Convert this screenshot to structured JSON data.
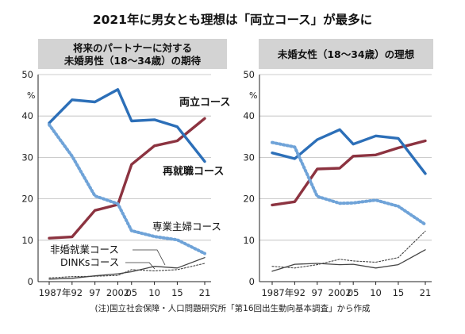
{
  "title": "2021年に男女とも理想は「両立コース」が最多に",
  "note": "(注)国立社会保障・人口問題研究所「第16回出生動向基本調査」から作成",
  "colors": {
    "両立コース": "#8c3340",
    "再就職コース": "#2c6fb8",
    "専業主婦コース": "#6fa3d8",
    "非婚就業コース": "#444444",
    "DINKsコース": "#444444"
  },
  "chart_data": [
    {
      "type": "line",
      "panel_title": [
        "将来のパートナーに対する",
        "未婚男性（18～34歳）の期待"
      ],
      "x": [
        "1987年",
        "92",
        "97",
        "2002",
        "05",
        "10",
        "15",
        "21"
      ],
      "ylim": [
        0,
        50
      ],
      "yticks": [
        "0",
        "10",
        "20",
        "30",
        "40",
        "50"
      ],
      "unit": "%",
      "series": [
        {
          "name": "両立コース",
          "values": [
            10.5,
            10.8,
            17.2,
            18.6,
            28.3,
            32.8,
            34.0,
            39.4
          ],
          "style": "solid-bold"
        },
        {
          "name": "再就職コース",
          "values": [
            38.3,
            43.9,
            43.4,
            46.4,
            38.8,
            39.1,
            37.4,
            29.0
          ],
          "style": "solid-bold"
        },
        {
          "name": "専業主婦コース",
          "values": [
            37.9,
            30.3,
            20.7,
            18.8,
            12.3,
            10.9,
            10.1,
            6.8
          ],
          "style": "dotted-bold"
        },
        {
          "name": "非婚就業コース",
          "values": [
            0.6,
            0.8,
            1.4,
            1.9,
            2.4,
            3.7,
            3.3,
            5.8
          ],
          "style": "solid-thin"
        },
        {
          "name": "DINKsコース",
          "values": [
            0.9,
            1.2,
            1.3,
            1.5,
            2.9,
            2.6,
            2.9,
            4.4
          ],
          "style": "dotted-thin"
        }
      ]
    },
    {
      "type": "line",
      "panel_title": [
        "未婚女性（18～34歳）の理想"
      ],
      "x": [
        "1987年",
        "92",
        "97",
        "2002",
        "05",
        "10",
        "15",
        "21"
      ],
      "ylim": [
        0,
        50
      ],
      "yticks": [
        "0",
        "10",
        "20",
        "30",
        "40",
        "50"
      ],
      "unit": "%",
      "series": [
        {
          "name": "両立コース",
          "values": [
            18.5,
            19.3,
            27.2,
            27.4,
            30.3,
            30.6,
            32.3,
            34.0
          ],
          "style": "solid-bold"
        },
        {
          "name": "再就職コース",
          "values": [
            31.1,
            29.7,
            34.3,
            36.7,
            33.2,
            35.2,
            34.6,
            26.1
          ],
          "style": "solid-bold"
        },
        {
          "name": "専業主婦コース",
          "values": [
            33.6,
            32.5,
            20.6,
            18.9,
            19.0,
            19.7,
            18.2,
            13.8
          ],
          "style": "dotted-bold"
        },
        {
          "name": "非婚就業コース",
          "values": [
            3.7,
            3.3,
            4.1,
            5.4,
            5.0,
            4.7,
            5.8,
            12.2
          ],
          "style": "dotted-thin"
        },
        {
          "name": "DINKsコース",
          "values": [
            2.5,
            4.2,
            4.4,
            4.1,
            4.2,
            3.3,
            4.1,
            7.7
          ],
          "style": "solid-thin"
        }
      ]
    }
  ],
  "labels": {
    "left": {
      "両立コース": "両立コース",
      "再就職コース": "再就職コース",
      "専業主婦コース": "専業主婦コース",
      "非婚就業コース": "非婚就業コース",
      "DINKsコース": "DINKsコース"
    }
  },
  "x_axis_display": [
    "1987年92",
    "97",
    "2002",
    "05",
    "10",
    "15",
    "21"
  ]
}
